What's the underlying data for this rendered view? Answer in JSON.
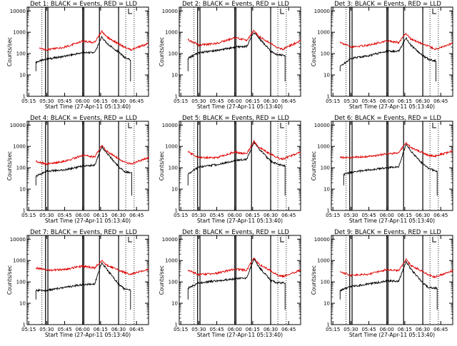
{
  "window": {
    "title": "Detector rate plots"
  },
  "colors": {
    "events": "#000000",
    "lld": "#e00000",
    "axes": "#000000"
  },
  "common": {
    "xlabel": "Start Time (27-Apr-11 05:13:40)",
    "ylabel": "Counts/sec",
    "xticks": [
      "05:15",
      "05:30",
      "05:45",
      "06:00",
      "06:15",
      "06:30",
      "06:45"
    ],
    "yticks": [
      "1",
      "10",
      "100",
      "1000",
      "10000"
    ]
  },
  "chart_data": [
    {
      "type": "line",
      "title": "Det 1: BLACK = Events, RED = LLD",
      "xlabel": "Start Time (27-Apr-11 05:13:40)",
      "ylabel": "Counts/sec",
      "xlim": [
        "05:13:40",
        "06:55:00"
      ],
      "ylim": [
        1,
        15000
      ],
      "yscale": "log",
      "grid": false,
      "legend": "in title",
      "series": [
        {
          "name": "BLACK = Events",
          "color": "#000000",
          "x": [
            "05:21",
            "05:30",
            "05:45",
            "06:00",
            "06:10",
            "06:16",
            "06:20",
            "06:30",
            "06:35",
            "06:40"
          ],
          "values": [
            40,
            55,
            75,
            110,
            110,
            600,
            300,
            120,
            65,
            50
          ]
        },
        {
          "name": "RED = LLD",
          "color": "#e00000",
          "x": [
            "05:24",
            "05:30",
            "05:45",
            "06:00",
            "06:10",
            "06:16",
            "06:20",
            "06:35",
            "06:40",
            "06:55"
          ],
          "values": [
            180,
            150,
            200,
            380,
            330,
            1100,
            600,
            200,
            150,
            300
          ]
        }
      ]
    },
    {
      "type": "line",
      "title": "Det 2: BLACK = Events, RED = LLD",
      "xlabel": "Start Time (27-Apr-11 05:13:40)",
      "ylabel": "Counts/sec",
      "xlim": [
        "05:13:40",
        "06:55:00"
      ],
      "ylim": [
        1,
        15000
      ],
      "yscale": "log",
      "grid": false,
      "legend": "in title",
      "series": [
        {
          "name": "BLACK = Events",
          "color": "#000000",
          "x": [
            "05:21",
            "05:30",
            "05:45",
            "06:00",
            "06:10",
            "06:16",
            "06:20",
            "06:30",
            "06:35",
            "06:42"
          ],
          "values": [
            60,
            110,
            140,
            200,
            220,
            1000,
            550,
            130,
            90,
            80
          ]
        },
        {
          "name": "RED = LLD",
          "color": "#e00000",
          "x": [
            "05:21",
            "05:30",
            "05:45",
            "06:00",
            "06:10",
            "06:16",
            "06:20",
            "06:35",
            "06:40",
            "06:55"
          ],
          "values": [
            450,
            250,
            300,
            550,
            420,
            1200,
            650,
            200,
            160,
            400
          ]
        }
      ]
    },
    {
      "type": "line",
      "title": "Det 3: BLACK = Events, RED = LLD",
      "xlabel": "Start Time (27-Apr-11 05:13:40)",
      "ylabel": "Counts/sec",
      "xlim": [
        "05:13:40",
        "06:55:00"
      ],
      "ylim": [
        1,
        15000
      ],
      "yscale": "log",
      "grid": false,
      "legend": "in title",
      "series": [
        {
          "name": "BLACK = Events",
          "color": "#000000",
          "x": [
            "05:21",
            "05:30",
            "05:45",
            "06:00",
            "06:10",
            "06:16",
            "06:20",
            "06:30",
            "06:35",
            "06:41"
          ],
          "values": [
            25,
            60,
            80,
            130,
            130,
            550,
            250,
            80,
            55,
            45
          ]
        },
        {
          "name": "RED = LLD",
          "color": "#e00000",
          "x": [
            "05:21",
            "05:30",
            "05:45",
            "06:00",
            "06:10",
            "06:16",
            "06:20",
            "06:35",
            "06:40",
            "06:55"
          ],
          "values": [
            350,
            200,
            250,
            400,
            330,
            900,
            480,
            220,
            160,
            300
          ]
        }
      ]
    },
    {
      "type": "line",
      "title": "Det 4: BLACK = Events, RED = LLD",
      "xlabel": "Start Time (27-Apr-11 05:13:40)",
      "ylabel": "Counts/sec",
      "xlim": [
        "05:13:40",
        "06:55:00"
      ],
      "ylim": [
        1,
        15000
      ],
      "yscale": "log",
      "grid": false,
      "legend": "in title",
      "series": [
        {
          "name": "BLACK = Events",
          "color": "#000000",
          "x": [
            "05:21",
            "05:30",
            "05:45",
            "06:00",
            "06:10",
            "06:16",
            "06:20",
            "06:30",
            "06:35",
            "06:41"
          ],
          "values": [
            40,
            70,
            80,
            120,
            130,
            950,
            500,
            110,
            65,
            60
          ]
        },
        {
          "name": "RED = LLD",
          "color": "#e00000",
          "x": [
            "05:21",
            "05:30",
            "05:45",
            "06:00",
            "06:10",
            "06:16",
            "06:20",
            "06:35",
            "06:40",
            "06:55"
          ],
          "values": [
            200,
            150,
            200,
            380,
            320,
            1100,
            600,
            180,
            150,
            300
          ]
        }
      ]
    },
    {
      "type": "line",
      "title": "Det 5: BLACK = Events, RED = LLD",
      "xlabel": "Start Time (27-Apr-11 05:13:40)",
      "ylabel": "Counts/sec",
      "xlim": [
        "05:13:40",
        "06:55:00"
      ],
      "ylim": [
        1,
        15000
      ],
      "yscale": "log",
      "grid": false,
      "legend": "in title",
      "series": [
        {
          "name": "BLACK = Events",
          "color": "#000000",
          "x": [
            "05:21",
            "05:30",
            "05:45",
            "06:00",
            "06:10",
            "06:16",
            "06:20",
            "06:30",
            "06:35",
            "06:42"
          ],
          "values": [
            50,
            110,
            140,
            220,
            250,
            1500,
            800,
            200,
            150,
            120
          ]
        },
        {
          "name": "RED = LLD",
          "color": "#e00000",
          "x": [
            "05:21",
            "05:30",
            "05:45",
            "06:00",
            "06:10",
            "06:16",
            "06:20",
            "06:35",
            "06:40",
            "06:55"
          ],
          "values": [
            550,
            300,
            300,
            550,
            450,
            1800,
            900,
            300,
            250,
            550
          ]
        }
      ]
    },
    {
      "type": "line",
      "title": "Det 6: BLACK = Events, RED = LLD",
      "xlabel": "Start Time (27-Apr-11 05:13:40)",
      "ylabel": "Counts/sec",
      "xlim": [
        "05:13:40",
        "06:55:00"
      ],
      "ylim": [
        1,
        15000
      ],
      "yscale": "log",
      "grid": false,
      "legend": "in title",
      "series": [
        {
          "name": "BLACK = Events",
          "color": "#000000",
          "x": [
            "05:24",
            "05:30",
            "05:45",
            "06:00",
            "06:10",
            "06:16",
            "06:20",
            "06:30",
            "06:35",
            "06:42"
          ],
          "values": [
            50,
            60,
            80,
            100,
            110,
            1300,
            600,
            150,
            90,
            70
          ]
        },
        {
          "name": "RED = LLD",
          "color": "#e00000",
          "x": [
            "05:21",
            "05:30",
            "05:45",
            "06:00",
            "06:10",
            "06:16",
            "06:20",
            "06:35",
            "06:40",
            "06:55"
          ],
          "values": [
            300,
            300,
            330,
            450,
            500,
            1500,
            900,
            380,
            350,
            600
          ]
        }
      ]
    },
    {
      "type": "line",
      "title": "Det 7: BLACK = Events, RED = LLD",
      "xlabel": "Start Time (27-Apr-11 05:13:40)",
      "ylabel": "Counts/sec",
      "xlim": [
        "05:13:40",
        "06:55:00"
      ],
      "ylim": [
        1,
        15000
      ],
      "yscale": "log",
      "grid": false,
      "legend": "in title",
      "series": [
        {
          "name": "BLACK = Events",
          "color": "#000000",
          "x": [
            "05:21",
            "05:30",
            "05:45",
            "06:00",
            "06:10",
            "06:16",
            "06:20",
            "06:30",
            "06:35",
            "06:40"
          ],
          "values": [
            40,
            40,
            55,
            75,
            80,
            800,
            400,
            80,
            45,
            40
          ]
        },
        {
          "name": "RED = LLD",
          "color": "#e00000",
          "x": [
            "05:21",
            "05:30",
            "05:45",
            "06:00",
            "06:10",
            "06:16",
            "06:20",
            "06:35",
            "06:40",
            "06:55"
          ],
          "values": [
            450,
            350,
            380,
            550,
            450,
            1000,
            600,
            280,
            230,
            400
          ]
        }
      ]
    },
    {
      "type": "line",
      "title": "Det 8: BLACK = Events, RED = LLD",
      "xlabel": "Start Time (27-Apr-11 05:13:40)",
      "ylabel": "Counts/sec",
      "xlim": [
        "05:13:40",
        "06:55:00"
      ],
      "ylim": [
        1,
        15000
      ],
      "yscale": "log",
      "grid": false,
      "legend": "in title",
      "series": [
        {
          "name": "BLACK = Events",
          "color": "#000000",
          "x": [
            "05:21",
            "05:30",
            "05:45",
            "06:00",
            "06:10",
            "06:16",
            "06:20",
            "06:30",
            "06:35",
            "06:42"
          ],
          "values": [
            50,
            90,
            110,
            140,
            150,
            1200,
            500,
            120,
            90,
            90
          ]
        },
        {
          "name": "RED = LLD",
          "color": "#e00000",
          "x": [
            "05:21",
            "05:30",
            "05:45",
            "06:00",
            "06:10",
            "06:16",
            "06:20",
            "06:35",
            "06:40",
            "06:55"
          ],
          "values": [
            350,
            220,
            250,
            400,
            350,
            1300,
            700,
            220,
            180,
            350
          ]
        }
      ]
    },
    {
      "type": "line",
      "title": "Det 9: BLACK = Events, RED = LLD",
      "xlabel": "Start Time (27-Apr-11 05:13:40)",
      "ylabel": "Counts/sec",
      "xlim": [
        "05:13:40",
        "06:55:00"
      ],
      "ylim": [
        1,
        15000
      ],
      "yscale": "log",
      "grid": false,
      "legend": "in title",
      "series": [
        {
          "name": "BLACK = Events",
          "color": "#000000",
          "x": [
            "05:21",
            "05:30",
            "05:45",
            "06:00",
            "06:10",
            "06:16",
            "06:20",
            "06:30",
            "06:35",
            "06:42"
          ],
          "values": [
            40,
            60,
            80,
            110,
            110,
            900,
            400,
            90,
            55,
            50
          ]
        },
        {
          "name": "RED = LLD",
          "color": "#e00000",
          "x": [
            "05:21",
            "05:30",
            "05:45",
            "06:00",
            "06:10",
            "06:16",
            "06:20",
            "06:35",
            "06:40",
            "06:55"
          ],
          "values": [
            300,
            200,
            230,
            380,
            330,
            1100,
            600,
            220,
            170,
            330
          ]
        }
      ]
    }
  ]
}
